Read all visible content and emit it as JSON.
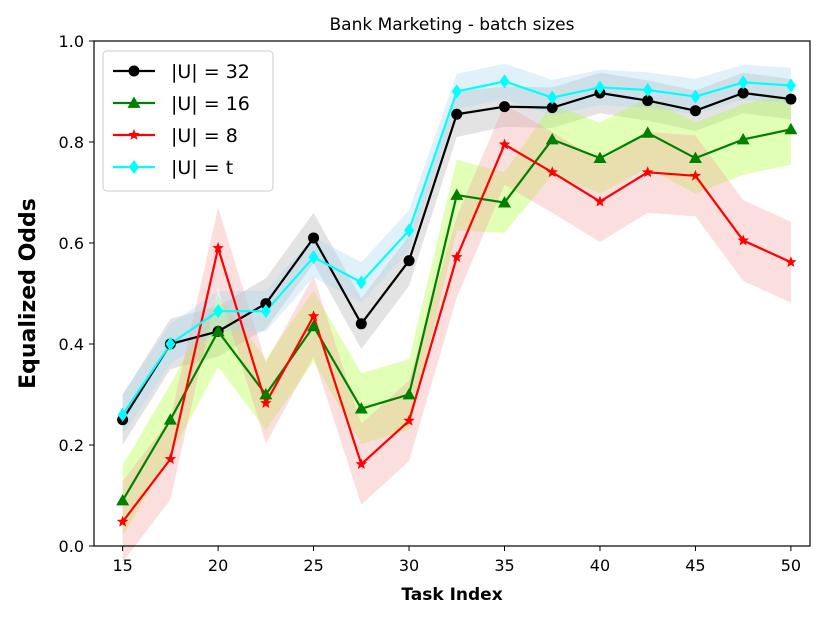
{
  "chart_data": {
    "type": "line",
    "title": "Bank Marketing - batch sizes",
    "xlabel": "Task Index",
    "ylabel": "Equalized Odds",
    "xlim": [
      13.5,
      51.0
    ],
    "ylim": [
      0.0,
      1.0
    ],
    "xticks": [
      15,
      20,
      25,
      30,
      35,
      40,
      45,
      50
    ],
    "yticks": [
      0.0,
      0.2,
      0.4,
      0.6,
      0.8,
      1.0
    ],
    "xtick_labels": [
      "15",
      "20",
      "25",
      "30",
      "35",
      "40",
      "45",
      "50"
    ],
    "ytick_labels": [
      "0.0",
      "0.2",
      "0.4",
      "0.6",
      "0.8",
      "1.0"
    ],
    "grid": false,
    "legend_position": "top-left",
    "x": [
      15,
      17.5,
      20,
      22.5,
      25,
      27.5,
      30,
      32.5,
      35,
      37.5,
      40,
      42.5,
      45,
      47.5,
      50
    ],
    "series": [
      {
        "name": "|U| = 32",
        "color": "#000000",
        "band_color": "#b0b0b0",
        "marker": "circle",
        "values": [
          0.25,
          0.4,
          0.425,
          0.48,
          0.61,
          0.44,
          0.565,
          0.855,
          0.87,
          0.868,
          0.897,
          0.882,
          0.862,
          0.897,
          0.885
        ],
        "band": [
          0.05,
          0.05,
          0.05,
          0.05,
          0.05,
          0.05,
          0.05,
          0.045,
          0.04,
          0.04,
          0.04,
          0.04,
          0.04,
          0.04,
          0.04
        ]
      },
      {
        "name": "|U| = 16",
        "color": "#008000",
        "band_color": "#adff2f",
        "marker": "triangle",
        "values": [
          0.09,
          0.25,
          0.425,
          0.3,
          0.435,
          0.272,
          0.3,
          0.695,
          0.68,
          0.805,
          0.768,
          0.818,
          0.768,
          0.805,
          0.825
        ],
        "band": [
          0.07,
          0.07,
          0.07,
          0.07,
          0.07,
          0.07,
          0.07,
          0.07,
          0.06,
          0.07,
          0.07,
          0.07,
          0.07,
          0.07,
          0.07
        ]
      },
      {
        "name": "|U| = 8",
        "color": "#ff0000",
        "band_color": "#f4a0a0",
        "marker": "star",
        "values": [
          0.048,
          0.172,
          0.59,
          0.283,
          0.455,
          0.162,
          0.248,
          0.572,
          0.795,
          0.74,
          0.682,
          0.74,
          0.733,
          0.605,
          0.562
        ],
        "band": [
          0.08,
          0.08,
          0.08,
          0.08,
          0.08,
          0.08,
          0.08,
          0.08,
          0.08,
          0.08,
          0.08,
          0.08,
          0.08,
          0.08,
          0.08
        ]
      },
      {
        "name": "|U| = t",
        "color": "#00ffff",
        "band_color": "#a8d8f0",
        "marker": "diamond",
        "values": [
          0.26,
          0.4,
          0.465,
          0.465,
          0.572,
          0.522,
          0.625,
          0.9,
          0.92,
          0.888,
          0.908,
          0.903,
          0.89,
          0.918,
          0.912
        ],
        "band": [
          0.04,
          0.04,
          0.04,
          0.04,
          0.04,
          0.04,
          0.04,
          0.035,
          0.035,
          0.035,
          0.035,
          0.035,
          0.035,
          0.035,
          0.035
        ]
      }
    ]
  }
}
